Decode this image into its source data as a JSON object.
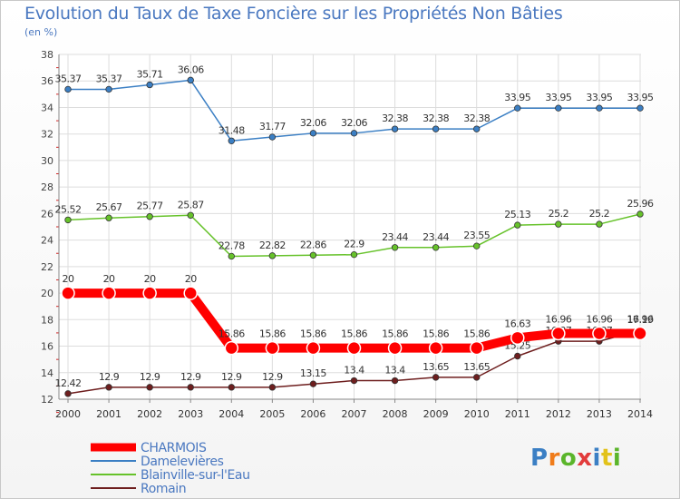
{
  "chart_data": {
    "type": "line",
    "title": "Evolution du Taux de Taxe Foncière sur les Propriétés Non Bâties",
    "subtitle": "(en %)",
    "x": [
      "2000",
      "2001",
      "2002",
      "2003",
      "2004",
      "2005",
      "2006",
      "2007",
      "2008",
      "2009",
      "2010",
      "2011",
      "2012",
      "2013",
      "2014"
    ],
    "ylim": [
      12,
      38
    ],
    "yticks": [
      12,
      14,
      16,
      18,
      20,
      22,
      24,
      26,
      28,
      30,
      32,
      34,
      36,
      38
    ],
    "grid": true,
    "legend_position": "bottom-left",
    "series": [
      {
        "name": "CHARMOIS",
        "color": "#ff0000",
        "values": [
          20,
          20,
          20,
          20,
          15.86,
          15.86,
          15.86,
          15.86,
          15.86,
          15.86,
          15.86,
          16.63,
          16.96,
          16.96,
          16.96
        ],
        "labels": [
          "20",
          "20",
          "20",
          "20",
          "15.86",
          "15.86",
          "15.86",
          "15.86",
          "15.86",
          "15.86",
          "15.86",
          "16.63",
          "16.96",
          "16.96",
          "16.96"
        ]
      },
      {
        "name": "Damelevières",
        "color": "#3b7fc4",
        "values": [
          35.37,
          35.37,
          35.71,
          36.06,
          31.48,
          31.77,
          32.06,
          32.06,
          32.38,
          32.38,
          32.38,
          33.95,
          33.95,
          33.95,
          33.95
        ],
        "labels": [
          "35.37",
          "35.37",
          "35.71",
          "36.06",
          "31.48",
          "31.77",
          "32.06",
          "32.06",
          "32.38",
          "32.38",
          "32.38",
          "33.95",
          "33.95",
          "33.95",
          "33.95"
        ]
      },
      {
        "name": "Blainville-sur-l'Eau",
        "color": "#66c22a",
        "values": [
          25.52,
          25.67,
          25.77,
          25.87,
          22.78,
          22.82,
          22.86,
          22.9,
          23.44,
          23.44,
          23.55,
          25.13,
          25.2,
          25.2,
          25.96
        ],
        "labels": [
          "25.52",
          "25.67",
          "25.77",
          "25.87",
          "22.78",
          "22.82",
          "22.86",
          "22.9",
          "23.44",
          "23.44",
          "23.55",
          "25.13",
          "25.2",
          "25.2",
          "25.96"
        ]
      },
      {
        "name": "Romain",
        "color": "#6e1e1e",
        "values": [
          12.42,
          12.9,
          12.9,
          12.9,
          12.9,
          12.9,
          13.15,
          13.4,
          13.4,
          13.65,
          13.65,
          15.25,
          16.37,
          16.37,
          17.19
        ],
        "labels": [
          "12.42",
          "12.9",
          "12.9",
          "12.9",
          "12.9",
          "12.9",
          "13.15",
          "13.4",
          "13.4",
          "13.65",
          "13.65",
          "15.25",
          "16.37",
          "16.37",
          "17.19"
        ]
      }
    ]
  },
  "logo": {
    "text": "Proxiti",
    "letter_colors": [
      "#3b7fc4",
      "#f07c1a",
      "#5bb52b",
      "#e23b3b",
      "#3b7fc4",
      "#e2c21a",
      "#5bb52b"
    ]
  }
}
